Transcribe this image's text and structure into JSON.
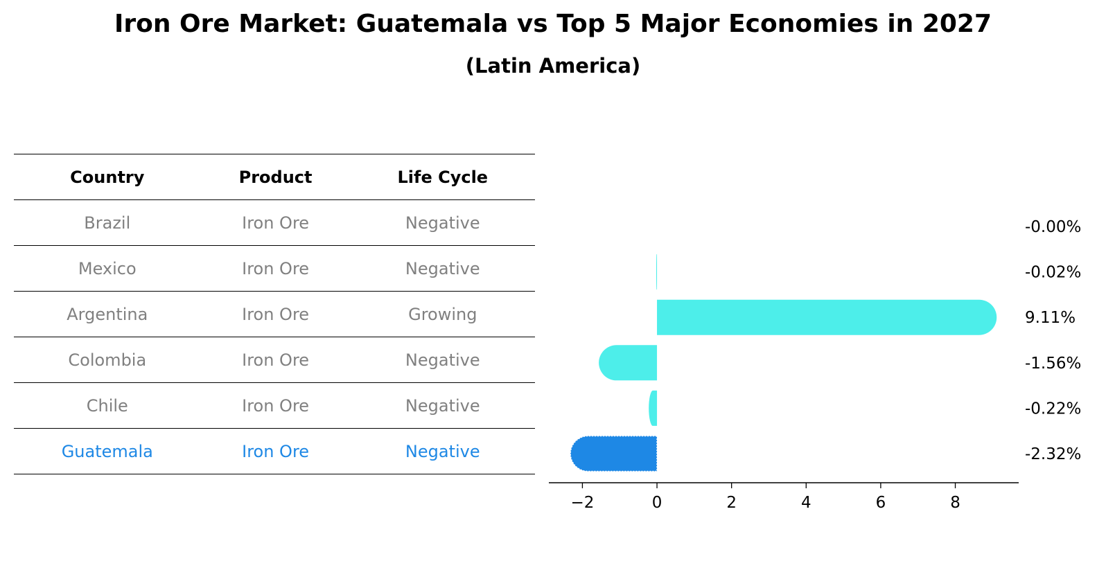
{
  "title": "Iron Ore Market: Guatemala vs Top 5 Major Economies in 2027",
  "subtitle": "(Latin America)",
  "table": {
    "headers": [
      "Country",
      "Product",
      "Life Cycle"
    ],
    "rows": [
      {
        "country": "Brazil",
        "product": "Iron Ore",
        "life_cycle": "Negative"
      },
      {
        "country": "Mexico",
        "product": "Iron Ore",
        "life_cycle": "Negative"
      },
      {
        "country": "Argentina",
        "product": "Iron Ore",
        "life_cycle": "Growing"
      },
      {
        "country": "Colombia",
        "product": "Iron Ore",
        "life_cycle": "Negative"
      },
      {
        "country": "Chile",
        "product": "Iron Ore",
        "life_cycle": "Negative"
      },
      {
        "country": "Guatemala",
        "product": "Iron Ore",
        "life_cycle": "Negative"
      }
    ]
  },
  "colors": {
    "bar": "#4deeea",
    "highlight": "#1e88e5",
    "muted_text": "#808080"
  },
  "chart_data": {
    "type": "bar",
    "orientation": "horizontal",
    "categories": [
      "Brazil",
      "Mexico",
      "Argentina",
      "Colombia",
      "Chile",
      "Guatemala"
    ],
    "values": [
      -0.0,
      -0.02,
      9.11,
      -1.56,
      -0.22,
      -2.32
    ],
    "value_labels": [
      "-0.00%",
      "-0.02%",
      "9.11%",
      "-1.56%",
      "-0.22%",
      "-2.32%"
    ],
    "highlight": "Guatemala",
    "xlim": [
      -2.9,
      9.7
    ],
    "xticks": [
      -2,
      0,
      2,
      4,
      6,
      8
    ],
    "xtick_labels": [
      "−2",
      "0",
      "2",
      "4",
      "6",
      "8"
    ],
    "xlabel": "",
    "ylabel": "",
    "grid": false
  }
}
